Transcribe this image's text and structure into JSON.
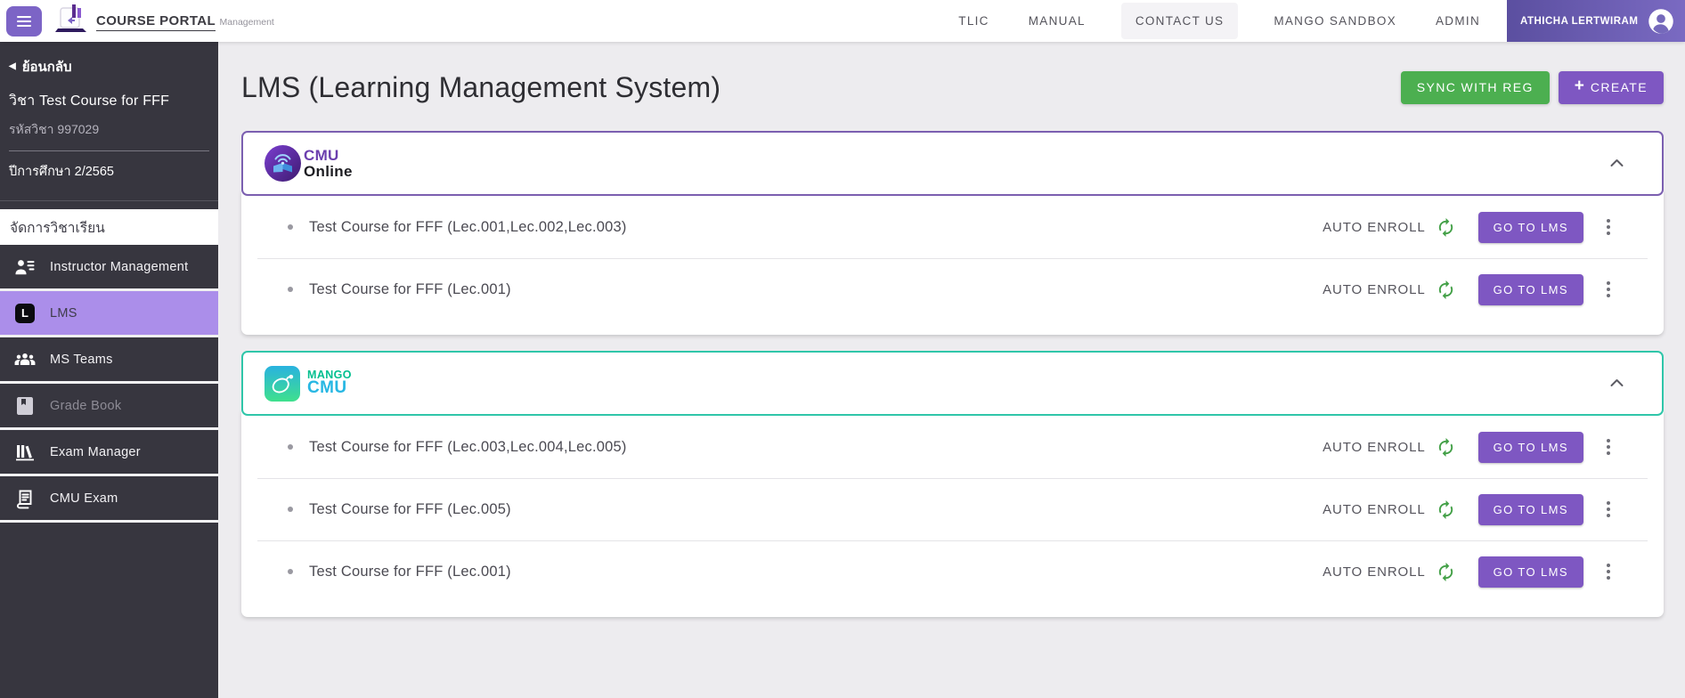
{
  "topbar": {
    "logo": {
      "title": "COURSE PORTAL",
      "subtitle": "Management"
    },
    "nav": [
      {
        "label": "TLIC",
        "highlighted": false
      },
      {
        "label": "MANUAL",
        "highlighted": false
      },
      {
        "label": "CONTACT US",
        "highlighted": true
      },
      {
        "label": "MANGO SANDBOX",
        "highlighted": false
      },
      {
        "label": "ADMIN",
        "highlighted": false
      }
    ],
    "user": {
      "name": "ATHICHA LERTWIRAM",
      "avatar_icon": "avatar-icon"
    },
    "hamburger_icon": "hamburger-icon"
  },
  "sidebar": {
    "back_label": "ย้อนกลับ",
    "back_arrow": "◀",
    "course_title": "วิชา Test Course for FFF",
    "course_code": "รหัสวิชา 997029",
    "term": "ปีการศึกษา 2/2565",
    "section_header": "จัดการวิชาเรียน",
    "items": [
      {
        "label": "Instructor Management",
        "icon": "instructor-icon",
        "state": "normal"
      },
      {
        "label": "LMS",
        "icon": "lms-icon",
        "state": "active"
      },
      {
        "label": "MS Teams",
        "icon": "ms-teams-icon",
        "state": "normal"
      },
      {
        "label": "Grade Book",
        "icon": "grade-book-icon",
        "state": "disabled"
      },
      {
        "label": "Exam Manager",
        "icon": "exam-manager-icon",
        "state": "normal"
      },
      {
        "label": "CMU Exam",
        "icon": "cmu-exam-icon",
        "state": "normal"
      }
    ]
  },
  "main": {
    "title": "LMS (Learning Management System)",
    "sync_button_label": "SYNC WITH REG",
    "create_button_label": "CREATE",
    "plus_glyph": "+",
    "sections": [
      {
        "provider": "CMU Online",
        "logo": "cmu-online-logo",
        "logo_line1": "CMU",
        "logo_line2": "Online",
        "border_color": "#7b5fb0",
        "courses": [
          {
            "name": "Test Course for FFF (Lec.001,Lec.002,Lec.003)",
            "enroll_label": "AUTO ENROLL",
            "action_label": "GO TO LMS"
          },
          {
            "name": "Test Course for FFF (Lec.001)",
            "enroll_label": "AUTO ENROLL",
            "action_label": "GO TO LMS"
          }
        ]
      },
      {
        "provider": "Mango CMU",
        "logo": "mango-cmu-logo",
        "logo_line1": "MANGO",
        "logo_line2": "CMU",
        "border_color": "#2fc6a9",
        "courses": [
          {
            "name": "Test Course for FFF (Lec.003,Lec.004,Lec.005)",
            "enroll_label": "AUTO ENROLL",
            "action_label": "GO TO LMS"
          },
          {
            "name": "Test Course for FFF (Lec.005)",
            "enroll_label": "AUTO ENROLL",
            "action_label": "GO TO LMS"
          },
          {
            "name": "Test Course for FFF (Lec.001)",
            "enroll_label": "AUTO ENROLL",
            "action_label": "GO TO LMS"
          }
        ]
      }
    ]
  },
  "colors": {
    "sync_green": "#4caf50",
    "action_purple": "#7e57c2",
    "sidebar_active_purple": "#ab8eea",
    "cmu_online_border": "#7b5fb0",
    "mango_border": "#2fc6a9",
    "sync_icon_green": "#43a047"
  }
}
